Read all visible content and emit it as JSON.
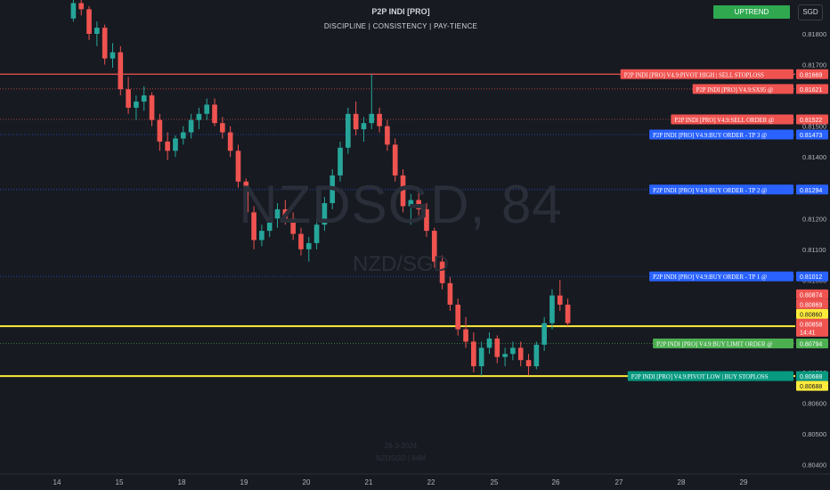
{
  "header": {
    "title": "P2P INDI [PRO]",
    "subtitle": "DISCIPLINE  |  CONSISTENCY  |  PAY-TIENCE"
  },
  "trend_badge": "UPTREND",
  "currency_button": "SGD",
  "watermark": {
    "symbol": "NZDSGD, 84",
    "pair": "NZD/SGD",
    "date": "26-3-2024",
    "footer": "NZDSGD | 84M"
  },
  "colors": {
    "background": "#171a21",
    "up": "#26a69a",
    "down": "#ef5350",
    "sell": "#ef5350",
    "buy": "#2962ff",
    "limit": "#4caf50",
    "pivot_low": "#089981",
    "yellow": "#ffeb3b",
    "trend": "#2fa84f"
  },
  "chart_data": {
    "type": "candlestick",
    "symbol": "NZDSGD",
    "timeframe": "84",
    "x_ticks": [
      "14",
      "15",
      "18",
      "19",
      "20",
      "21",
      "22",
      "25",
      "26",
      "27",
      "28",
      "29"
    ],
    "price_ticks": [
      "0.81800",
      "0.81700",
      "0.81500",
      "0.81400",
      "0.81300",
      "0.81200",
      "0.81100",
      "0.81000",
      "0.80700",
      "0.80600",
      "0.80500",
      "0.80400"
    ],
    "ylim": [
      0.8037,
      0.8191
    ],
    "grid": false,
    "levels": [
      {
        "label": "P2P INDI [PRO] V4.9:PIVOT HIGH | SELL STOPLOSS",
        "price": "0.81669",
        "kind": "sell"
      },
      {
        "label": "P2P INDI [PRO] V4.9:SX95 @",
        "price": "0.81621",
        "kind": "sell"
      },
      {
        "label": "P2P INDI [PRO] V4.9:SELL ORDER @",
        "price": "0.81522",
        "kind": "sell"
      },
      {
        "label": "P2P INDI [PRO] V4.9:BUY ORDER - TP 3 @",
        "price": "0.81473",
        "kind": "buy"
      },
      {
        "label": "P2P INDI [PRO] V4.9:BUY ORDER - TP 2 @",
        "price": "0.81294",
        "kind": "buy"
      },
      {
        "label": "P2P INDI [PRO] V4.9:BUY ORDER - TP 1 @",
        "price": "0.81012",
        "kind": "buy"
      },
      {
        "label": "P2P INDI [PRO] V4.9:BUY LIMIT ORDER @",
        "price": "0.80794",
        "kind": "limit"
      },
      {
        "label": "P2P INDI [PRO] V4.9:PIVOT LOW | BUY STOPLOSS",
        "price": "0.80688",
        "kind": "pivot"
      }
    ],
    "price_badges": [
      {
        "price": "0.80874",
        "kind": "sell"
      },
      {
        "price": "0.80869",
        "kind": "sell"
      },
      {
        "price": "0.80860",
        "kind": "yellow"
      },
      {
        "price": "0.80858",
        "time": "14:41",
        "kind": "sell"
      },
      {
        "price": "0.80688",
        "kind": "yellow"
      }
    ],
    "horizontal_lines": [
      {
        "price": 0.8085,
        "kind": "yellow"
      },
      {
        "price": 0.80688,
        "kind": "yellow"
      }
    ],
    "candles": [
      [
        0.8185,
        0.8192,
        0.8184,
        0.819
      ],
      [
        0.819,
        0.8193,
        0.8186,
        0.8188
      ],
      [
        0.8188,
        0.8189,
        0.8178,
        0.818
      ],
      [
        0.818,
        0.8184,
        0.8176,
        0.8182
      ],
      [
        0.8182,
        0.8183,
        0.817,
        0.8172
      ],
      [
        0.8172,
        0.8177,
        0.8169,
        0.8174
      ],
      [
        0.8174,
        0.8176,
        0.816,
        0.8162
      ],
      [
        0.8162,
        0.8166,
        0.8154,
        0.8156
      ],
      [
        0.8156,
        0.816,
        0.8152,
        0.8158
      ],
      [
        0.8158,
        0.8163,
        0.8155,
        0.816
      ],
      [
        0.816,
        0.8161,
        0.815,
        0.8152
      ],
      [
        0.8152,
        0.8154,
        0.8142,
        0.8145
      ],
      [
        0.8145,
        0.8148,
        0.8139,
        0.8142
      ],
      [
        0.8142,
        0.8147,
        0.814,
        0.8146
      ],
      [
        0.8146,
        0.815,
        0.8144,
        0.8148
      ],
      [
        0.8148,
        0.8154,
        0.8146,
        0.8152
      ],
      [
        0.8152,
        0.8156,
        0.8149,
        0.8154
      ],
      [
        0.8154,
        0.8159,
        0.8152,
        0.8157
      ],
      [
        0.8157,
        0.8159,
        0.815,
        0.8151
      ],
      [
        0.8151,
        0.8153,
        0.8146,
        0.8148
      ],
      [
        0.8148,
        0.815,
        0.814,
        0.8142
      ],
      [
        0.8142,
        0.8144,
        0.813,
        0.8132
      ],
      [
        0.8132,
        0.8133,
        0.812,
        0.8122
      ],
      [
        0.8122,
        0.8124,
        0.811,
        0.8113
      ],
      [
        0.8113,
        0.8118,
        0.8111,
        0.8116
      ],
      [
        0.8116,
        0.8122,
        0.8114,
        0.812
      ],
      [
        0.812,
        0.8125,
        0.8117,
        0.8123
      ],
      [
        0.8123,
        0.8126,
        0.8118,
        0.812
      ],
      [
        0.812,
        0.8122,
        0.8113,
        0.8115
      ],
      [
        0.8115,
        0.8117,
        0.8108,
        0.811
      ],
      [
        0.811,
        0.8114,
        0.8106,
        0.8112
      ],
      [
        0.8112,
        0.812,
        0.811,
        0.8118
      ],
      [
        0.8118,
        0.8127,
        0.8116,
        0.8125
      ],
      [
        0.8125,
        0.8136,
        0.8123,
        0.8134
      ],
      [
        0.8134,
        0.8145,
        0.8132,
        0.8143
      ],
      [
        0.8143,
        0.8156,
        0.8141,
        0.8154
      ],
      [
        0.8154,
        0.8158,
        0.8147,
        0.8149
      ],
      [
        0.8149,
        0.8153,
        0.8145,
        0.8151
      ],
      [
        0.8151,
        0.81669,
        0.8149,
        0.8154
      ],
      [
        0.8154,
        0.8156,
        0.8148,
        0.815
      ],
      [
        0.815,
        0.8152,
        0.8142,
        0.8144
      ],
      [
        0.8144,
        0.8146,
        0.8132,
        0.8134
      ],
      [
        0.8134,
        0.8136,
        0.8122,
        0.8124
      ],
      [
        0.8124,
        0.8128,
        0.8118,
        0.8126
      ],
      [
        0.8126,
        0.8129,
        0.8121,
        0.8123
      ],
      [
        0.8123,
        0.8125,
        0.8114,
        0.8116
      ],
      [
        0.8116,
        0.8117,
        0.8104,
        0.8106
      ],
      [
        0.8106,
        0.8108,
        0.8097,
        0.8099
      ],
      [
        0.8099,
        0.8101,
        0.809,
        0.8092
      ],
      [
        0.8092,
        0.8094,
        0.8082,
        0.8084
      ],
      [
        0.8084,
        0.8088,
        0.8078,
        0.808
      ],
      [
        0.808,
        0.8083,
        0.807,
        0.8072
      ],
      [
        0.8072,
        0.808,
        0.80688,
        0.8078
      ],
      [
        0.8078,
        0.8083,
        0.8076,
        0.8081
      ],
      [
        0.8081,
        0.8082,
        0.8073,
        0.8075
      ],
      [
        0.8075,
        0.8078,
        0.8072,
        0.8076
      ],
      [
        0.8076,
        0.808,
        0.8074,
        0.8078
      ],
      [
        0.8078,
        0.808,
        0.8072,
        0.8074
      ],
      [
        0.8074,
        0.8076,
        0.8069,
        0.8072
      ],
      [
        0.8072,
        0.808,
        0.8071,
        0.8079
      ],
      [
        0.8079,
        0.8088,
        0.8077,
        0.8086
      ],
      [
        0.8086,
        0.8097,
        0.8084,
        0.8095
      ],
      [
        0.8095,
        0.81,
        0.809,
        0.8092
      ],
      [
        0.8092,
        0.8094,
        0.8085,
        0.8086
      ]
    ]
  }
}
